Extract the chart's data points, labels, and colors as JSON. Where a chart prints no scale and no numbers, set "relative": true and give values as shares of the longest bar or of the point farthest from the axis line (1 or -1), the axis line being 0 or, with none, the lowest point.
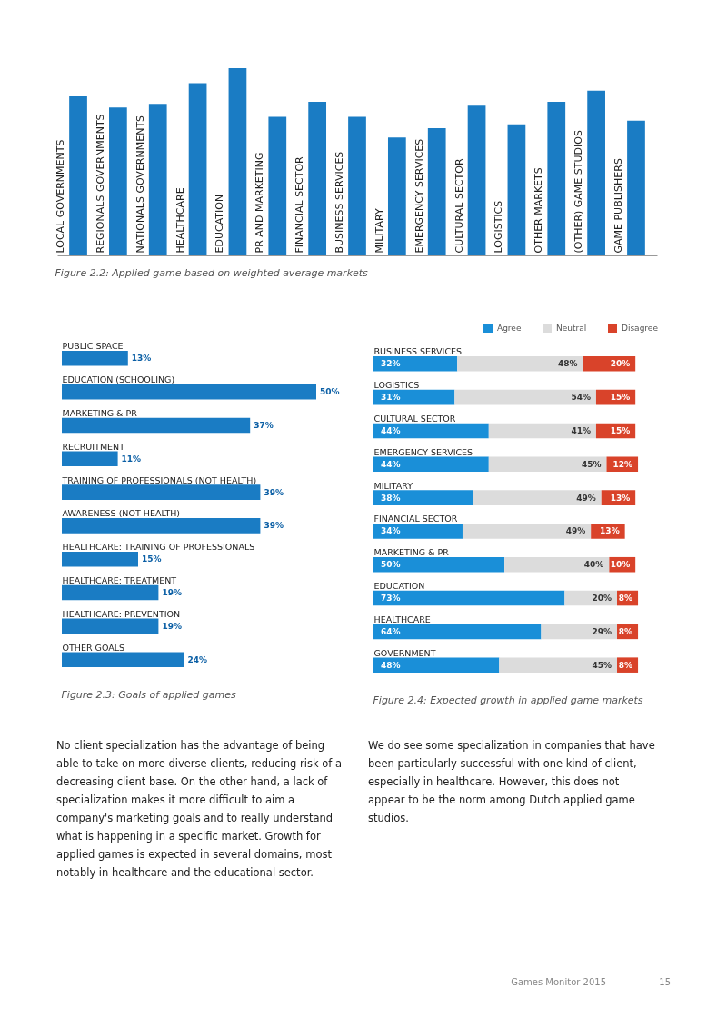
{
  "chart_data": [
    {
      "type": "bar",
      "title": "Figure 2.2: Applied game based on weighted average markets",
      "relative": true,
      "color": "#1a7cc4",
      "categories": [
        "LOCAL GOVERNMENTS",
        "REGIONALS GOVERNMENTS",
        "NATIONALS GOVERNMENTS",
        "HEALTHCARE",
        "EDUCATION",
        "PR AND MARKETING",
        "FINANCIAL SECTOR",
        "BUSINESS SERVICES",
        "MILITARY",
        "EMERGENCY SERVICES",
        "CULTURAL SECTOR",
        "LOGISTICS",
        "OTHER MARKETS",
        "(OTHER) GAME STUDIOS",
        "GAME PUBLISHERS"
      ],
      "values": [
        0.85,
        0.79,
        0.81,
        0.92,
        1,
        0.74,
        0.82,
        0.74,
        0.63,
        0.68,
        0.8,
        0.7,
        0.82,
        0.88,
        0.72
      ]
    },
    {
      "type": "bar",
      "orientation": "horizontal",
      "title": "Figure 2.3: Goals of applied games",
      "color": "#1a7cc4",
      "categories": [
        "PUBLIC SPACE",
        "EDUCATION (SCHOOLING)",
        "MARKETING & PR",
        "RECRUITMENT",
        "TRAINING OF PROFESSIONALS (NOT HEALTH)",
        "AWARENESS (NOT HEALTH)",
        "HEALTHCARE: TRAINING OF PROFESSIONALS",
        "HEALTHCARE: TREATMENT",
        "HEALTHCARE: PREVENTION",
        "OTHER GOALS"
      ],
      "values": [
        13,
        50,
        37,
        11,
        39,
        39,
        15,
        19,
        19,
        24
      ],
      "value_labels": [
        "13%",
        "50%",
        "37%",
        "11%",
        "39%",
        "39%",
        "15%",
        "19%",
        "19%",
        "24%"
      ]
    },
    {
      "type": "bar",
      "orientation": "horizontal",
      "stacked": true,
      "title": "Figure 2.4: Expected growth in applied game markets",
      "legend": "top right",
      "categories": [
        "BUSINESS SERVICES",
        "LOGISTICS",
        "CULTURAL SECTOR",
        "EMERGENCY SERVICES",
        "MILITARY",
        "FINANCIAL SECTOR",
        "MARKETING & PR",
        "EDUCATION",
        "HEALTHCARE",
        "GOVERNMENT"
      ],
      "series": [
        {
          "name": "Agree",
          "color": "#1a8fd8",
          "values": [
            32,
            31,
            44,
            44,
            38,
            34,
            50,
            73,
            64,
            48
          ],
          "value_labels": [
            "32%",
            "31%",
            "44%",
            "44%",
            "38%",
            "34%",
            "50%",
            "73%",
            "64%",
            "48%"
          ]
        },
        {
          "name": "Neutral",
          "color": "#dcdcdc",
          "values": [
            48,
            54,
            41,
            45,
            49,
            49,
            40,
            20,
            29,
            45
          ],
          "value_labels": [
            "48%",
            "54%",
            "41%",
            "45%",
            "49%",
            "49%",
            "40%",
            "20%",
            "29%",
            "45%"
          ]
        },
        {
          "name": "Disagree",
          "color": "#d9432a",
          "values": [
            20,
            15,
            15,
            12,
            13,
            13,
            10,
            8,
            8,
            8
          ],
          "value_labels": [
            "20%",
            "15%",
            "15%",
            "12%",
            "13%",
            "13%",
            "10%",
            "8%",
            "8%",
            "8%"
          ]
        }
      ]
    },
    {
      "type": "other",
      "annotations": [
        "No client specialization has the advantage of being able to take on more diverse clients, reducing risk of a decreasing client base. On the other hand, a lack of specialization makes it more difficult to aim a company's marketing goals and to really understand what is happening in a specific market. Growth for applied games is expected in several domains, most notably in healthcare and the educational sector.",
        "We do see some specialization in companies that have been particularly successful with one kind of client, especially in healthcare. However, this does not appear to be the norm among Dutch applied game studios.",
        "Games Monitor 2015",
        "15"
      ]
    }
  ]
}
